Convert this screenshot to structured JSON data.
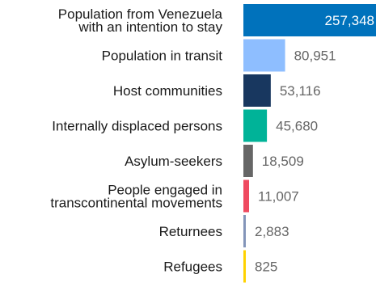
{
  "chart_data": {
    "type": "bar",
    "orientation": "horizontal",
    "categories": [
      [
        "Population from Venezuela",
        "with an intention to stay"
      ],
      [
        "Population in transit"
      ],
      [
        "Host communities"
      ],
      [
        "Internally displaced persons"
      ],
      [
        "Asylum-seekers"
      ],
      [
        "People engaged in",
        "transcontinental movements"
      ],
      [
        "Returnees"
      ],
      [
        "Refugees"
      ]
    ],
    "values": [
      257348,
      80951,
      53116,
      45680,
      18509,
      11007,
      2883,
      825
    ],
    "value_labels": [
      "257,348",
      "80,951",
      "53,116",
      "45,680",
      "18,509",
      "11,007",
      "2,883",
      "825"
    ],
    "colors": [
      "#0072BC",
      "#8EBEFF",
      "#18375F",
      "#00B398",
      "#666666",
      "#EF4A60",
      "#8395B9",
      "#FFD200"
    ],
    "value_label_colors": [
      "#ffffff",
      "#666666",
      "#666666",
      "#666666",
      "#666666",
      "#666666",
      "#666666",
      "#666666"
    ],
    "value_label_inside": [
      true,
      false,
      false,
      false,
      false,
      false,
      false,
      false
    ],
    "title": "",
    "xlabel": "",
    "ylabel": "",
    "xlim": [
      0,
      257348
    ],
    "grid": false,
    "legend": "none"
  }
}
